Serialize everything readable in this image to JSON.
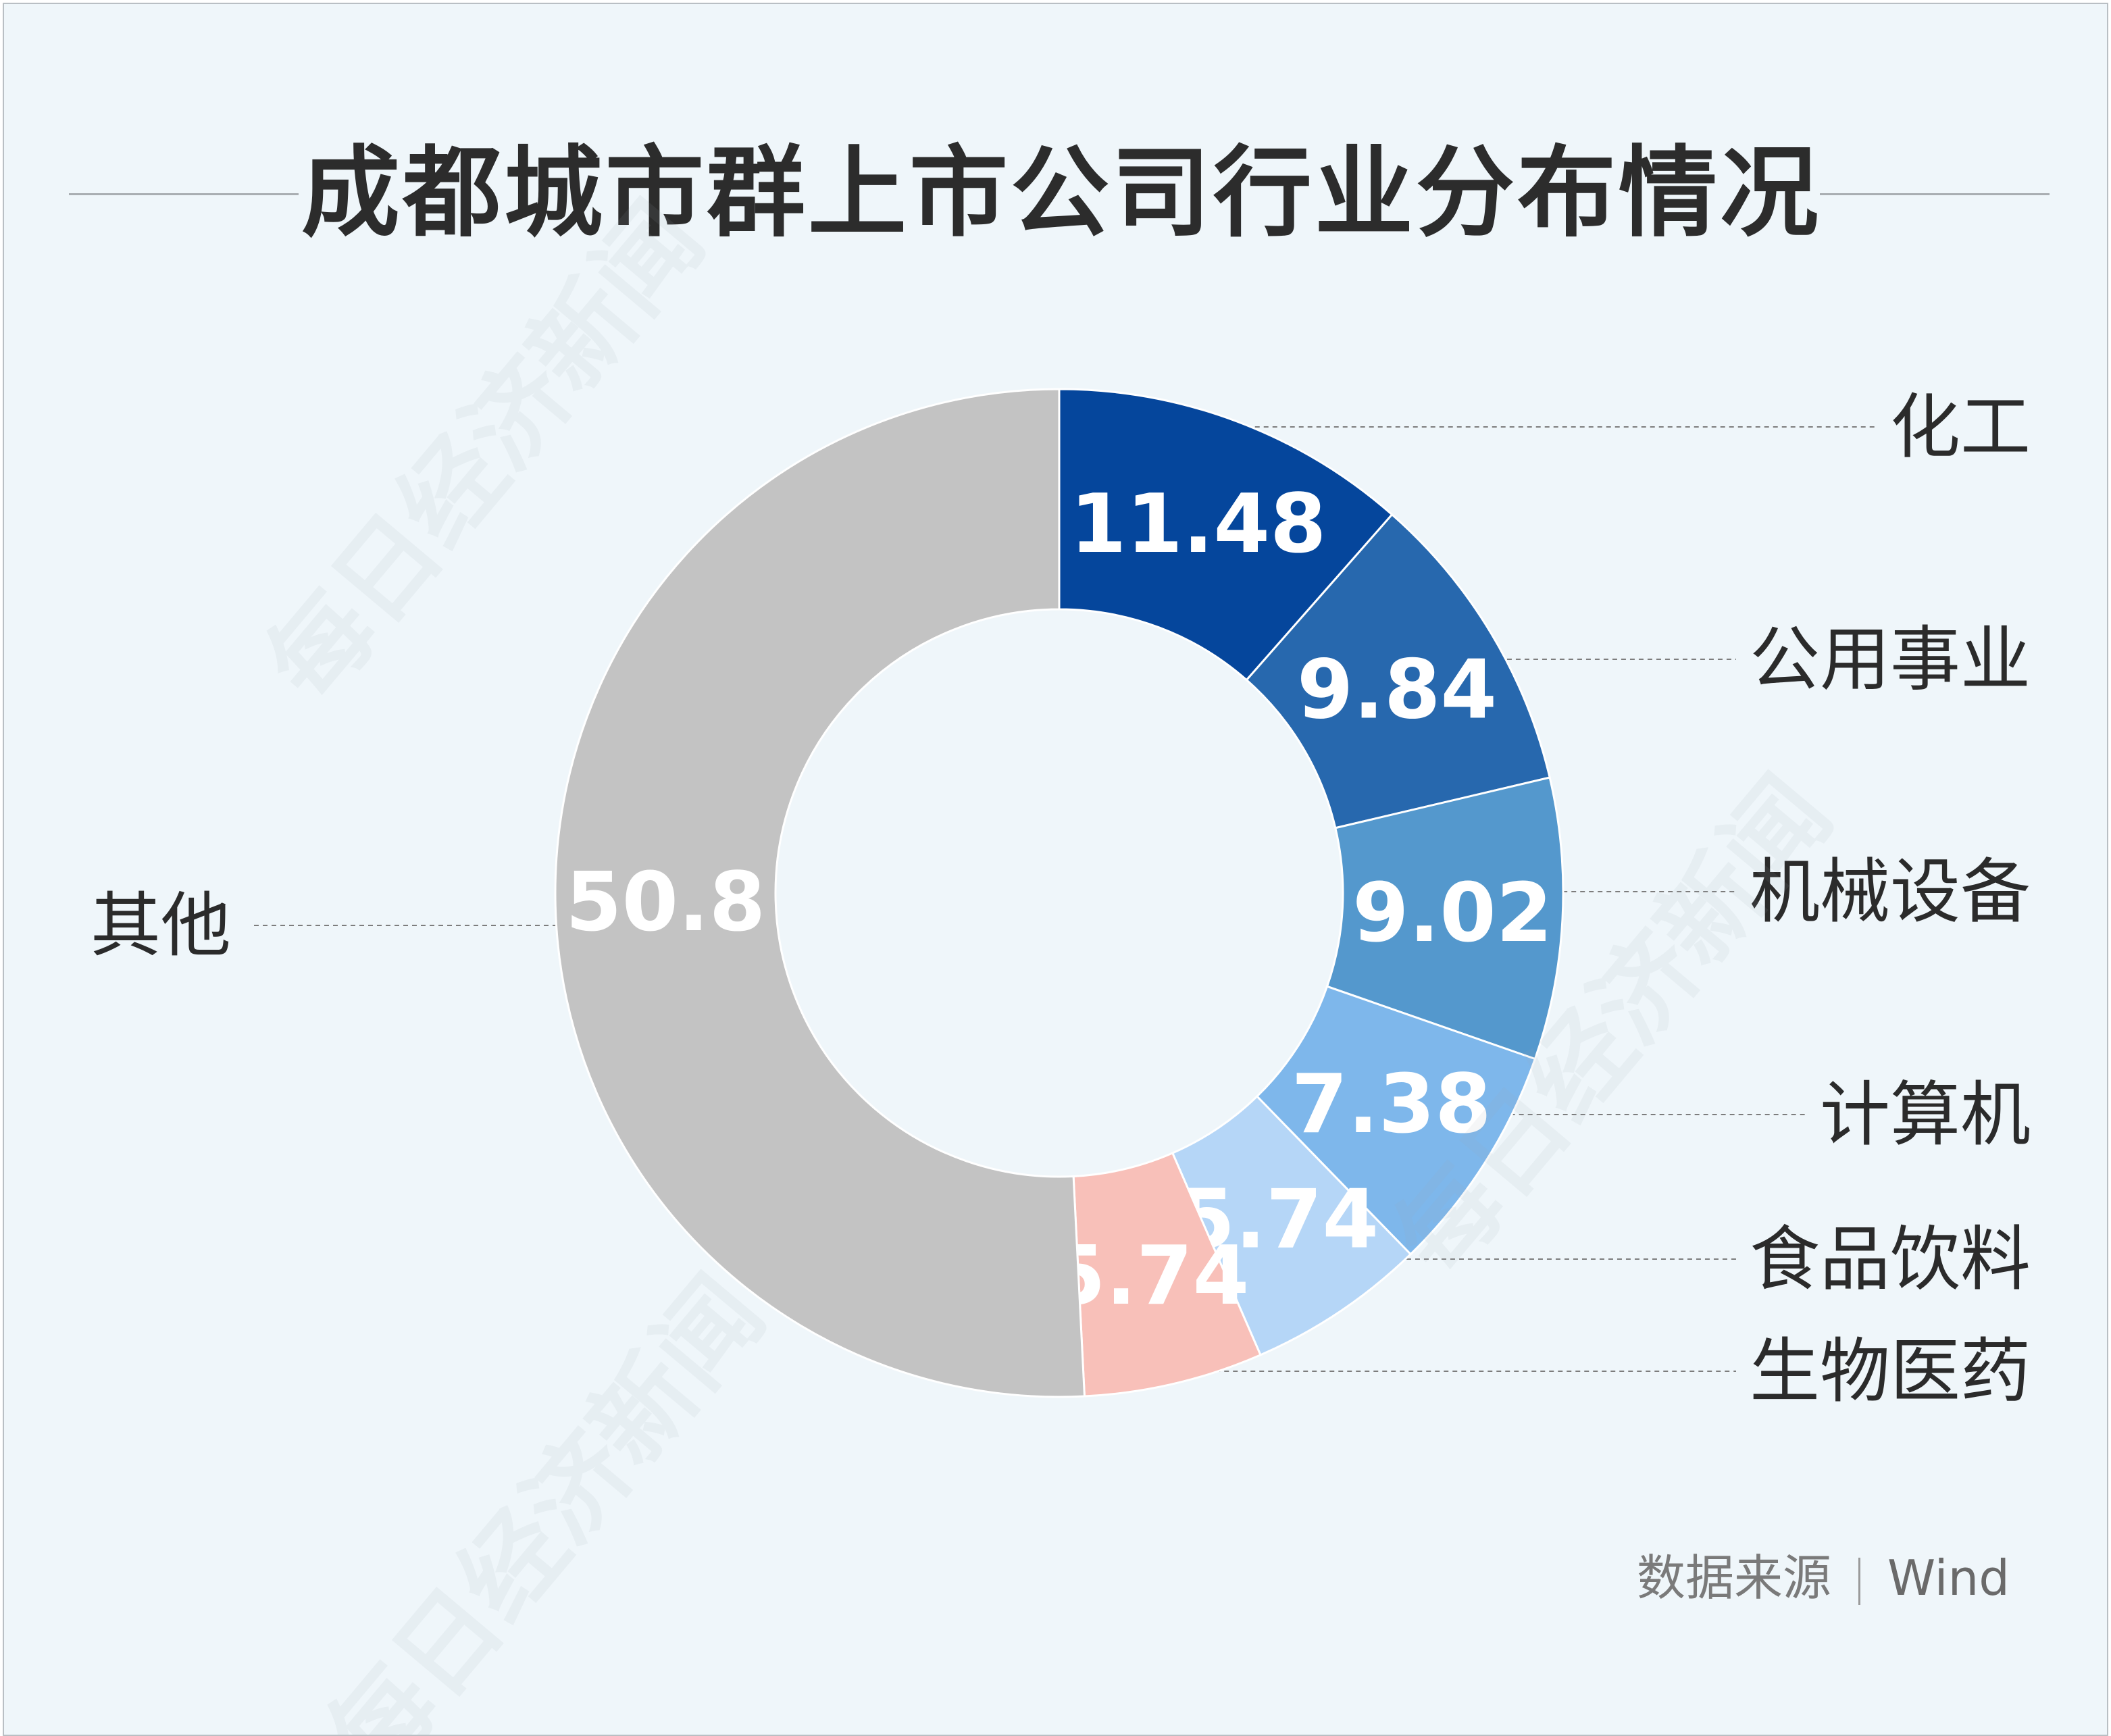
{
  "header": {
    "title": "成都城市群上市公司行业分布情况"
  },
  "footer": {
    "source_label": "数据来源",
    "source_value": "Wind"
  },
  "watermark": {
    "text": "每日经济新闻"
  },
  "chart_data": {
    "type": "pie",
    "variant": "donut",
    "title": "成都城市群上市公司行业分布情况",
    "categories": [
      "化工",
      "公用事业",
      "机械设备",
      "计算机",
      "食品饮料",
      "生物医药",
      "其他"
    ],
    "values": [
      11.48,
      9.84,
      9.02,
      7.38,
      5.74,
      5.74,
      50.8
    ],
    "labels": [
      "11.48",
      "9.84",
      "9.02",
      "7.38",
      "5.74",
      "5.74",
      "50.8"
    ],
    "colors": [
      "#05469c",
      "#2768ae",
      "#5498cd",
      "#7eb7eb",
      "#b5d6f7",
      "#f8c0b9",
      "#c3c3c3"
    ],
    "start": "12 o'clock",
    "direction": "clockwise",
    "legend": "leader-line labels, right and left"
  }
}
